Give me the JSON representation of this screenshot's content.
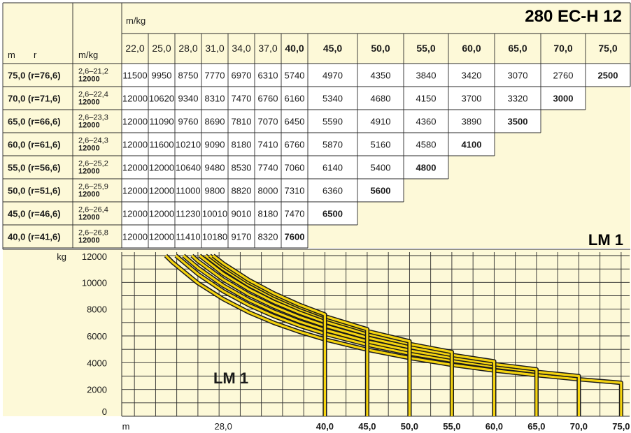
{
  "model_title": "280 EC-H 12",
  "load_mode_label": "LM 1",
  "table": {
    "header_mkg": "m/kg",
    "header_m": "m",
    "header_r": "r",
    "header_rowmkg": "m/kg",
    "radii": [
      "22,0",
      "25,0",
      "28,0",
      "31,0",
      "34,0",
      "37,0",
      "40,0",
      "45,0",
      "50,0",
      "55,0",
      "60,0",
      "65,0",
      "70,0",
      "75,0"
    ],
    "rows": [
      {
        "jib": "75,0 (r=76,6)",
        "range": "2,6–21,2",
        "max": "12000",
        "loads": [
          "11500",
          "9950",
          "8750",
          "7770",
          "6970",
          "6310",
          "5740",
          "4970",
          "4350",
          "3840",
          "3420",
          "3070",
          "2760",
          "2500"
        ]
      },
      {
        "jib": "70,0 (r=71,6)",
        "range": "2,6–22,4",
        "max": "12000",
        "loads": [
          "12000",
          "10620",
          "9340",
          "8310",
          "7470",
          "6760",
          "6160",
          "5340",
          "4680",
          "4150",
          "3700",
          "3320",
          "3000"
        ]
      },
      {
        "jib": "65,0 (r=66,6)",
        "range": "2,6–23,3",
        "max": "12000",
        "loads": [
          "12000",
          "11090",
          "9760",
          "8690",
          "7810",
          "7070",
          "6450",
          "5590",
          "4910",
          "4360",
          "3890",
          "3500"
        ]
      },
      {
        "jib": "60,0 (r=61,6)",
        "range": "2,6–24,3",
        "max": "12000",
        "loads": [
          "12000",
          "11600",
          "10210",
          "9090",
          "8180",
          "7410",
          "6760",
          "5870",
          "5160",
          "4580",
          "4100"
        ]
      },
      {
        "jib": "55,0 (r=56,6)",
        "range": "2,6–25,2",
        "max": "12000",
        "loads": [
          "12000",
          "12000",
          "10640",
          "9480",
          "8530",
          "7740",
          "7060",
          "6140",
          "5400",
          "4800"
        ]
      },
      {
        "jib": "50,0 (r=51,6)",
        "range": "2,6–25,9",
        "max": "12000",
        "loads": [
          "12000",
          "12000",
          "11000",
          "9800",
          "8820",
          "8000",
          "7310",
          "6360",
          "5600"
        ]
      },
      {
        "jib": "45,0 (r=46,6)",
        "range": "2,6–26,4",
        "max": "12000",
        "loads": [
          "12000",
          "12000",
          "11230",
          "10010",
          "9010",
          "8180",
          "7470",
          "6500"
        ]
      },
      {
        "jib": "40,0 (r=41,6)",
        "range": "2,6–26,8",
        "max": "12000",
        "loads": [
          "12000",
          "12000",
          "11410",
          "10180",
          "9170",
          "8320",
          "7600"
        ]
      }
    ]
  },
  "chart_data": {
    "type": "line",
    "ylabel": "kg",
    "xlabel": "m",
    "ylim": [
      0,
      12000
    ],
    "yticks": [
      0,
      2000,
      4000,
      6000,
      8000,
      10000,
      12000
    ],
    "xlim": [
      16,
      76
    ],
    "xtick_labels": [
      {
        "x": 28,
        "label": "28,0",
        "bold": false
      },
      {
        "x": 40,
        "label": "40,0",
        "bold": true
      },
      {
        "x": 45,
        "label": "45,0",
        "bold": true
      },
      {
        "x": 50,
        "label": "50,0",
        "bold": true
      },
      {
        "x": 55,
        "label": "55,0",
        "bold": true
      },
      {
        "x": 60,
        "label": "60,0",
        "bold": true
      },
      {
        "x": 65,
        "label": "65,0",
        "bold": true
      },
      {
        "x": 70,
        "label": "70,0",
        "bold": true
      },
      {
        "x": 75,
        "label": "75,0",
        "bold": true
      }
    ],
    "label": "LM 1",
    "series": [
      {
        "jib": 75,
        "x": [
          21.2,
          22,
          25,
          28,
          31,
          34,
          37,
          40,
          45,
          50,
          55,
          60,
          65,
          70,
          75
        ],
        "y": [
          12000,
          11500,
          9950,
          8750,
          7770,
          6970,
          6310,
          5740,
          4970,
          4350,
          3840,
          3420,
          3070,
          2760,
          2500
        ]
      },
      {
        "jib": 70,
        "x": [
          22.4,
          25,
          28,
          31,
          34,
          37,
          40,
          45,
          50,
          55,
          60,
          65,
          70
        ],
        "y": [
          12000,
          10620,
          9340,
          8310,
          7470,
          6760,
          6160,
          5340,
          4680,
          4150,
          3700,
          3320,
          3000
        ]
      },
      {
        "jib": 65,
        "x": [
          23.3,
          25,
          28,
          31,
          34,
          37,
          40,
          45,
          50,
          55,
          60,
          65
        ],
        "y": [
          12000,
          11090,
          9760,
          8690,
          7810,
          7070,
          6450,
          5590,
          4910,
          4360,
          3890,
          3500
        ]
      },
      {
        "jib": 60,
        "x": [
          24.3,
          25,
          28,
          31,
          34,
          37,
          40,
          45,
          50,
          55,
          60
        ],
        "y": [
          12000,
          11600,
          10210,
          9090,
          8180,
          7410,
          6760,
          5870,
          5160,
          4580,
          4100
        ]
      },
      {
        "jib": 55,
        "x": [
          25.2,
          28,
          31,
          34,
          37,
          40,
          45,
          50,
          55
        ],
        "y": [
          12000,
          10640,
          9480,
          8530,
          7740,
          7060,
          6140,
          5400,
          4800
        ]
      },
      {
        "jib": 50,
        "x": [
          25.9,
          28,
          31,
          34,
          37,
          40,
          45,
          50
        ],
        "y": [
          12000,
          11000,
          9800,
          8820,
          8000,
          7310,
          6360,
          5600
        ]
      },
      {
        "jib": 45,
        "x": [
          26.4,
          28,
          31,
          34,
          37,
          40,
          45
        ],
        "y": [
          12000,
          11230,
          10010,
          9010,
          8180,
          7470,
          6500
        ]
      },
      {
        "jib": 40,
        "x": [
          26.8,
          28,
          31,
          34,
          37,
          40
        ],
        "y": [
          12000,
          11410,
          10180,
          9170,
          8320,
          7600
        ]
      }
    ],
    "colors": {
      "curve": "#f5d40f",
      "outline": "#1a1a1a",
      "panel": "#fdf9d8",
      "grid": "#2a2a2a"
    }
  }
}
